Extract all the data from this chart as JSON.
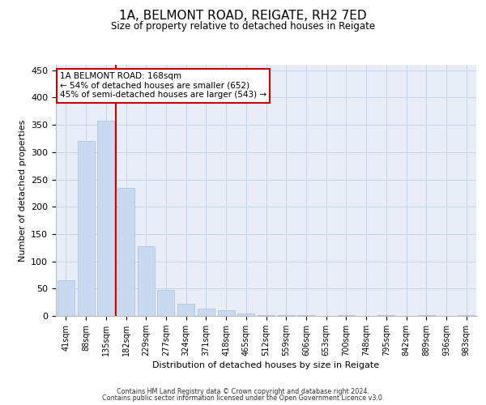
{
  "title_line1": "1A, BELMONT ROAD, REIGATE, RH2 7ED",
  "title_line2": "Size of property relative to detached houses in Reigate",
  "xlabel": "Distribution of detached houses by size in Reigate",
  "ylabel": "Number of detached properties",
  "categories": [
    "41sqm",
    "88sqm",
    "135sqm",
    "182sqm",
    "229sqm",
    "277sqm",
    "324sqm",
    "371sqm",
    "418sqm",
    "465sqm",
    "512sqm",
    "559sqm",
    "606sqm",
    "653sqm",
    "700sqm",
    "748sqm",
    "795sqm",
    "842sqm",
    "889sqm",
    "936sqm",
    "983sqm"
  ],
  "values": [
    65,
    320,
    358,
    235,
    127,
    47,
    22,
    14,
    10,
    5,
    2,
    1,
    1,
    0,
    2,
    0,
    1,
    0,
    1,
    0,
    2
  ],
  "bar_color": "#c9d9f0",
  "bar_edge_color": "#aabfd8",
  "vline_pos": 2.5,
  "vline_color": "#cc0000",
  "annotation_text": "1A BELMONT ROAD: 168sqm\n← 54% of detached houses are smaller (652)\n45% of semi-detached houses are larger (543) →",
  "annotation_box_color": "#ffffff",
  "annotation_box_edge": "#cc0000",
  "ylim": [
    0,
    460
  ],
  "yticks": [
    0,
    50,
    100,
    150,
    200,
    250,
    300,
    350,
    400,
    450
  ],
  "grid_color": "#c8d4e8",
  "background_color": "#e8edf8",
  "footer_line1": "Contains HM Land Registry data © Crown copyright and database right 2024.",
  "footer_line2": "Contains public sector information licensed under the Open Government Licence v3.0."
}
